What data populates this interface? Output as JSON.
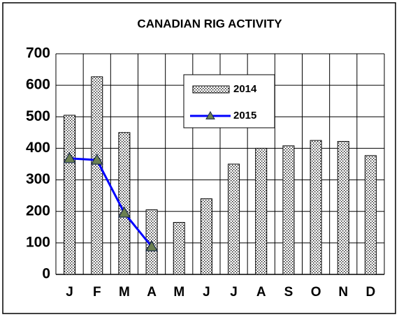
{
  "chart_data": {
    "type": "bar",
    "title": "CANADIAN RIG ACTIVITY",
    "categories": [
      "J",
      "F",
      "M",
      "A",
      "M",
      "J",
      "J",
      "A",
      "S",
      "O",
      "N",
      "D"
    ],
    "series": [
      {
        "name": "2014",
        "type": "bar",
        "color": "#ffffff",
        "values": [
          505,
          627,
          450,
          205,
          165,
          240,
          350,
          400,
          408,
          425,
          422,
          377
        ]
      },
      {
        "name": "2015",
        "type": "line",
        "color": "#0000ff",
        "marker_color": "#6b8050",
        "values": [
          368,
          363,
          195,
          88,
          null,
          null,
          null,
          null,
          null,
          null,
          null,
          null
        ]
      }
    ],
    "ylim": [
      0,
      700
    ],
    "yticks": [
      0,
      100,
      200,
      300,
      400,
      500,
      600,
      700
    ],
    "grid": true,
    "legend": "top"
  }
}
